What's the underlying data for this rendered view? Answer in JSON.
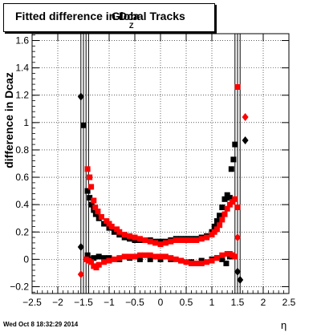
{
  "header": {
    "title_main": "Fitted difference in Dca",
    "title_sub": "Z",
    "title_tail": "Global Tracks"
  },
  "footer": {
    "timestamp": "Wed Oct  8 18:32:29 2014"
  },
  "colors": {
    "series_black": "#000000",
    "series_red": "#ff0000",
    "grid": "#000000"
  },
  "chart_data": {
    "type": "scatter",
    "title": "Fitted difference in DcaZ Global Tracks",
    "xlabel": "η",
    "ylabel": "difference in Dcaz",
    "xlim": [
      -2.5,
      2.5
    ],
    "ylim": [
      -0.25,
      1.65
    ],
    "x_ticks": [
      "−2.5",
      "−2",
      "−1.5",
      "−1",
      "−0.5",
      "0",
      "0.5",
      "1",
      "1.5",
      "2",
      "2.5"
    ],
    "y_ticks": [
      "−0.2",
      "0",
      "0.2",
      "0.4",
      "0.6",
      "0.8",
      "1",
      "1.2",
      "1.4",
      "1.6"
    ],
    "grid": true,
    "vertical_lines_x": [
      -1.55,
      -1.5,
      -1.45,
      -1.4,
      1.45,
      1.5,
      1.55
    ],
    "series": [
      {
        "name": "",
        "marker": "square",
        "color": "#000000",
        "points": [
          [
            -1.5,
            0.98
          ],
          [
            -1.42,
            0.5
          ],
          [
            -1.38,
            0.45
          ],
          [
            -1.34,
            0.4
          ],
          [
            -1.3,
            0.36
          ],
          [
            -1.26,
            0.33
          ],
          [
            -1.2,
            0.3
          ],
          [
            -1.1,
            0.26
          ],
          [
            -1.0,
            0.23
          ],
          [
            -0.9,
            0.2
          ],
          [
            -0.8,
            0.18
          ],
          [
            -0.7,
            0.16
          ],
          [
            -0.6,
            0.15
          ],
          [
            -0.5,
            0.14
          ],
          [
            -0.4,
            0.14
          ],
          [
            -0.3,
            0.14
          ],
          [
            -0.2,
            0.14
          ],
          [
            -0.1,
            0.13
          ],
          [
            0.0,
            0.13
          ],
          [
            0.1,
            0.13
          ],
          [
            0.2,
            0.14
          ],
          [
            0.3,
            0.15
          ],
          [
            0.4,
            0.15
          ],
          [
            0.5,
            0.15
          ],
          [
            0.6,
            0.15
          ],
          [
            0.7,
            0.15
          ],
          [
            0.8,
            0.16
          ],
          [
            0.9,
            0.17
          ],
          [
            1.0,
            0.2
          ],
          [
            1.05,
            0.24
          ],
          [
            1.1,
            0.28
          ],
          [
            1.15,
            0.32
          ],
          [
            1.2,
            0.38
          ],
          [
            1.25,
            0.44
          ],
          [
            1.3,
            0.47
          ],
          [
            1.35,
            0.45
          ],
          [
            1.38,
            0.66
          ],
          [
            1.42,
            0.73
          ],
          [
            1.45,
            0.84
          ],
          [
            -1.42,
            0.03
          ],
          [
            -1.38,
            0.0
          ],
          [
            -1.3,
            0.01
          ],
          [
            -1.2,
            0.02
          ],
          [
            -1.1,
            0.01
          ],
          [
            -1.0,
            0.01
          ],
          [
            -0.8,
            0.0
          ],
          [
            -0.6,
            0.01
          ],
          [
            -0.4,
            0.0
          ],
          [
            -0.2,
            0.0
          ],
          [
            0.0,
            0.0
          ],
          [
            0.2,
            0.0
          ],
          [
            0.4,
            -0.01
          ],
          [
            0.6,
            -0.02
          ],
          [
            0.8,
            -0.01
          ],
          [
            1.0,
            0.0
          ],
          [
            1.1,
            0.01
          ],
          [
            1.2,
            0.0
          ],
          [
            1.28,
            -0.03
          ],
          [
            1.35,
            0.02
          ],
          [
            1.4,
            0.03
          ]
        ]
      },
      {
        "name": "",
        "marker": "diamond",
        "color": "#000000",
        "points": [
          [
            -1.55,
            1.19
          ],
          [
            -1.55,
            0.09
          ],
          [
            1.65,
            0.87
          ],
          [
            1.55,
            -0.15
          ],
          [
            1.5,
            -0.09
          ]
        ]
      },
      {
        "name": "",
        "marker": "square",
        "color": "#ff0000",
        "points": [
          [
            1.5,
            1.26
          ],
          [
            -1.42,
            0.66
          ],
          [
            -1.38,
            0.6
          ],
          [
            -1.35,
            0.53
          ],
          [
            -1.3,
            0.43
          ],
          [
            -1.27,
            0.38
          ],
          [
            -1.22,
            0.35
          ],
          [
            -1.15,
            0.31
          ],
          [
            -1.05,
            0.28
          ],
          [
            -1.0,
            0.26
          ],
          [
            -0.95,
            0.24
          ],
          [
            -0.85,
            0.22
          ],
          [
            -0.8,
            0.2
          ],
          [
            -0.7,
            0.18
          ],
          [
            -0.6,
            0.17
          ],
          [
            -0.5,
            0.16
          ],
          [
            -0.4,
            0.15
          ],
          [
            -0.3,
            0.14
          ],
          [
            -0.2,
            0.13
          ],
          [
            -0.1,
            0.12
          ],
          [
            0.0,
            0.11
          ],
          [
            0.1,
            0.12
          ],
          [
            0.2,
            0.13
          ],
          [
            0.3,
            0.14
          ],
          [
            0.4,
            0.14
          ],
          [
            0.5,
            0.14
          ],
          [
            0.6,
            0.14
          ],
          [
            0.7,
            0.14
          ],
          [
            0.8,
            0.15
          ],
          [
            0.9,
            0.16
          ],
          [
            1.0,
            0.18
          ],
          [
            1.05,
            0.2
          ],
          [
            1.1,
            0.22
          ],
          [
            1.15,
            0.25
          ],
          [
            1.2,
            0.29
          ],
          [
            1.25,
            0.33
          ],
          [
            1.3,
            0.37
          ],
          [
            1.35,
            0.4
          ],
          [
            1.4,
            0.42
          ],
          [
            1.45,
            0.44
          ],
          [
            1.5,
            0.38
          ],
          [
            -1.45,
            0.0
          ],
          [
            -1.4,
            -0.01
          ],
          [
            -1.35,
            -0.02
          ],
          [
            -1.3,
            -0.05
          ],
          [
            -1.25,
            -0.06
          ],
          [
            -1.2,
            -0.04
          ],
          [
            -1.1,
            -0.02
          ],
          [
            -1.0,
            -0.01
          ],
          [
            -0.9,
            0.0
          ],
          [
            -0.8,
            0.01
          ],
          [
            -0.7,
            0.02
          ],
          [
            -0.6,
            0.02
          ],
          [
            -0.5,
            0.02
          ],
          [
            -0.4,
            0.03
          ],
          [
            -0.3,
            0.03
          ],
          [
            -0.2,
            0.03
          ],
          [
            -0.1,
            0.02
          ],
          [
            0.0,
            0.02
          ],
          [
            0.1,
            0.02
          ],
          [
            0.2,
            0.01
          ],
          [
            0.3,
            0.0
          ],
          [
            0.4,
            -0.01
          ],
          [
            0.5,
            -0.02
          ],
          [
            0.6,
            -0.03
          ],
          [
            0.7,
            -0.03
          ],
          [
            0.8,
            -0.03
          ],
          [
            0.9,
            -0.02
          ],
          [
            1.0,
            -0.01
          ],
          [
            1.1,
            0.01
          ],
          [
            1.2,
            0.03
          ],
          [
            1.3,
            0.04
          ],
          [
            1.35,
            0.04
          ],
          [
            1.4,
            0.03
          ],
          [
            1.45,
            0.02
          ]
        ]
      },
      {
        "name": "",
        "marker": "diamond",
        "color": "#ff0000",
        "points": [
          [
            1.65,
            1.04
          ],
          [
            -1.55,
            -0.11
          ],
          [
            1.5,
            0.16
          ]
        ]
      }
    ]
  }
}
